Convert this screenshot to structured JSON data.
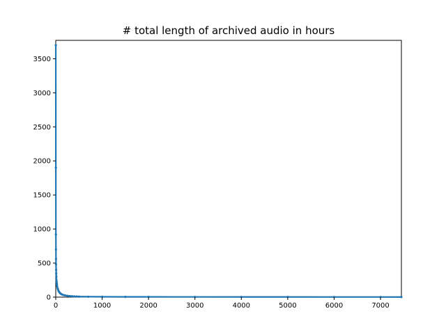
{
  "chart_data": {
    "type": "line",
    "title": "# total length of archived audio in hours",
    "xlabel": "",
    "ylabel": "",
    "xlim": [
      0,
      7450
    ],
    "ylim": [
      0,
      3770
    ],
    "xticks": [
      0,
      1000,
      2000,
      3000,
      4000,
      5000,
      6000,
      7000
    ],
    "yticks": [
      0,
      500,
      1000,
      1500,
      2000,
      2500,
      3000,
      3500
    ],
    "grid": false,
    "legend": "none",
    "series": [
      {
        "color": "#1f77b4",
        "marker": "dot",
        "points": [
          [
            1,
            3700
          ],
          [
            2,
            1900
          ],
          [
            3,
            920
          ],
          [
            4,
            700
          ],
          [
            5,
            560
          ],
          [
            6,
            480
          ],
          [
            8,
            400
          ],
          [
            10,
            350
          ],
          [
            13,
            300
          ],
          [
            16,
            250
          ],
          [
            20,
            220
          ],
          [
            25,
            190
          ],
          [
            30,
            160
          ],
          [
            40,
            130
          ],
          [
            50,
            110
          ],
          [
            60,
            90
          ],
          [
            75,
            75
          ],
          [
            90,
            60
          ],
          [
            110,
            50
          ],
          [
            130,
            40
          ],
          [
            160,
            32
          ],
          [
            200,
            26
          ],
          [
            250,
            20
          ],
          [
            300,
            16
          ],
          [
            350,
            13
          ],
          [
            400,
            11
          ],
          [
            450,
            9
          ],
          [
            500,
            8
          ],
          [
            700,
            6
          ],
          [
            1000,
            5
          ],
          [
            1500,
            4
          ],
          [
            2000,
            3.5
          ],
          [
            3000,
            3
          ],
          [
            4000,
            2.5
          ],
          [
            5000,
            2.2
          ],
          [
            6000,
            2
          ],
          [
            7000,
            1.8
          ],
          [
            7450,
            1.5
          ]
        ]
      }
    ]
  }
}
